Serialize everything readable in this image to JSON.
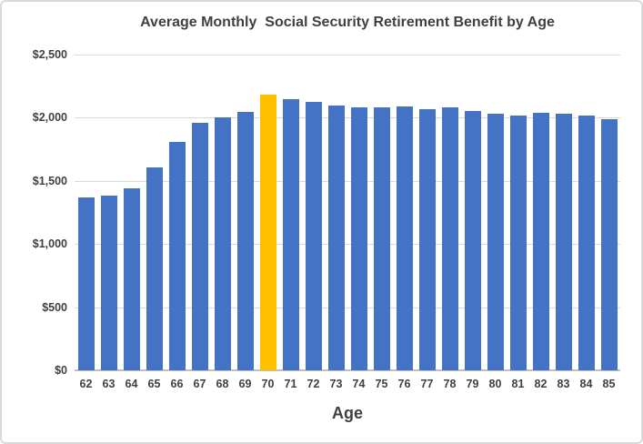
{
  "chart_data": {
    "type": "bar",
    "title": "Average Monthly  Social Security Retirement Benefit by Age",
    "xlabel": "Age",
    "ylabel": "",
    "categories": [
      "62",
      "63",
      "64",
      "65",
      "66",
      "67",
      "68",
      "69",
      "70",
      "71",
      "72",
      "73",
      "74",
      "75",
      "76",
      "77",
      "78",
      "79",
      "80",
      "81",
      "82",
      "83",
      "84",
      "85"
    ],
    "values": [
      1370,
      1385,
      1440,
      1605,
      1805,
      1960,
      2000,
      2045,
      2180,
      2150,
      2125,
      2100,
      2085,
      2080,
      2090,
      2065,
      2085,
      2050,
      2030,
      2020,
      2040,
      2030,
      2015,
      1985
    ],
    "highlight_category": "70",
    "y_tick_labels": [
      "$2,500",
      "$2,000",
      "$1,500",
      "$1,000",
      "$500",
      "$0"
    ],
    "ylim": [
      0,
      2500
    ],
    "y_tick_step": 500,
    "grid": true,
    "legend": "none",
    "colors": {
      "bar": "#4472C4",
      "highlight_bar": "#FFC000",
      "gridline": "#D9D9D9",
      "axis_line": "#BFBFBF",
      "text": "#404040",
      "frame_border": "#D9D9D9"
    }
  }
}
